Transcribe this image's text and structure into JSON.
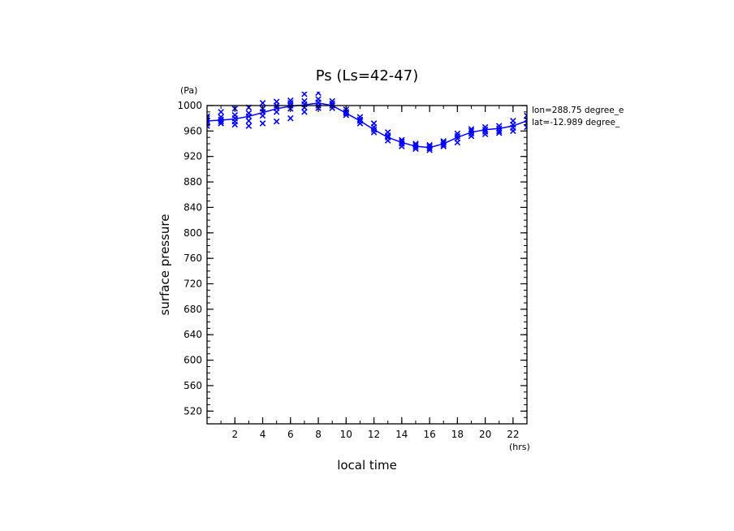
{
  "chart_data": {
    "type": "line",
    "title": "Ps (Ls=42-47)",
    "xlabel": "local time",
    "ylabel": "surface pressure",
    "x_unit": "(hrs)",
    "y_unit": "(Pa)",
    "xlim": [
      0,
      23
    ],
    "ylim": [
      500,
      1000
    ],
    "x_ticks": [
      2,
      4,
      6,
      8,
      10,
      12,
      14,
      16,
      18,
      20,
      22
    ],
    "y_ticks": [
      520,
      560,
      600,
      640,
      680,
      720,
      760,
      800,
      840,
      880,
      920,
      960,
      1000
    ],
    "grid": false,
    "annotations": [
      "lon=288.75 degree_e",
      "lat=-12.989 degree_"
    ],
    "mean_line": {
      "name": "",
      "color": "#0000ff",
      "x": [
        0,
        1,
        2,
        3,
        4,
        5,
        6,
        7,
        8,
        9,
        10,
        11,
        12,
        13,
        14,
        15,
        16,
        17,
        18,
        19,
        20,
        21,
        22,
        23
      ],
      "y": [
        976,
        977,
        979,
        983,
        989,
        995,
        999,
        1001,
        1004,
        1000,
        988,
        976,
        962,
        950,
        942,
        936,
        934,
        940,
        950,
        958,
        962,
        964,
        968,
        976
      ]
    },
    "scatter": {
      "color": "#0000ff",
      "marker": "x",
      "points": [
        [
          0,
          968
        ],
        [
          0,
          972
        ],
        [
          0,
          976
        ],
        [
          0,
          980
        ],
        [
          0,
          983
        ],
        [
          1,
          972
        ],
        [
          1,
          975
        ],
        [
          1,
          978
        ],
        [
          1,
          982
        ],
        [
          1,
          990
        ],
        [
          2,
          970
        ],
        [
          2,
          975
        ],
        [
          2,
          980
        ],
        [
          2,
          985
        ],
        [
          2,
          995
        ],
        [
          3,
          968
        ],
        [
          3,
          976
        ],
        [
          3,
          983
        ],
        [
          3,
          988
        ],
        [
          3,
          997
        ],
        [
          4,
          972
        ],
        [
          4,
          984
        ],
        [
          4,
          990
        ],
        [
          4,
          995
        ],
        [
          4,
          1004
        ],
        [
          5,
          975
        ],
        [
          5,
          990
        ],
        [
          5,
          996
        ],
        [
          5,
          1000
        ],
        [
          5,
          1006
        ],
        [
          6,
          980
        ],
        [
          6,
          995
        ],
        [
          6,
          1000
        ],
        [
          6,
          1004
        ],
        [
          6,
          1008
        ],
        [
          7,
          990
        ],
        [
          7,
          997
        ],
        [
          7,
          1002
        ],
        [
          7,
          1007
        ],
        [
          7,
          1018
        ],
        [
          8,
          996
        ],
        [
          8,
          1000
        ],
        [
          8,
          1005
        ],
        [
          8,
          1010
        ],
        [
          8,
          1020
        ],
        [
          9,
          996
        ],
        [
          9,
          1000
        ],
        [
          9,
          1003
        ],
        [
          9,
          1007
        ],
        [
          10,
          985
        ],
        [
          10,
          988
        ],
        [
          10,
          990
        ],
        [
          10,
          994
        ],
        [
          11,
          972
        ],
        [
          11,
          976
        ],
        [
          11,
          978
        ],
        [
          11,
          982
        ],
        [
          12,
          958
        ],
        [
          12,
          962
        ],
        [
          12,
          966
        ],
        [
          12,
          972
        ],
        [
          13,
          945
        ],
        [
          13,
          950
        ],
        [
          13,
          953
        ],
        [
          13,
          958
        ],
        [
          14,
          936
        ],
        [
          14,
          940
        ],
        [
          14,
          943
        ],
        [
          14,
          946
        ],
        [
          15,
          932
        ],
        [
          15,
          935
        ],
        [
          15,
          938
        ],
        [
          15,
          940
        ],
        [
          16,
          930
        ],
        [
          16,
          933
        ],
        [
          16,
          936
        ],
        [
          16,
          938
        ],
        [
          17,
          936
        ],
        [
          17,
          939
        ],
        [
          17,
          942
        ],
        [
          17,
          944
        ],
        [
          18,
          942
        ],
        [
          18,
          948
        ],
        [
          18,
          952
        ],
        [
          18,
          956
        ],
        [
          19,
          952
        ],
        [
          19,
          956
        ],
        [
          19,
          960
        ],
        [
          19,
          963
        ],
        [
          20,
          955
        ],
        [
          20,
          959
        ],
        [
          20,
          962
        ],
        [
          20,
          966
        ],
        [
          21,
          957
        ],
        [
          21,
          960
        ],
        [
          21,
          964
        ],
        [
          21,
          968
        ],
        [
          22,
          960
        ],
        [
          22,
          965
        ],
        [
          22,
          970
        ],
        [
          22,
          976
        ],
        [
          23,
          966
        ],
        [
          23,
          972
        ],
        [
          23,
          978
        ],
        [
          23,
          984
        ]
      ]
    }
  }
}
